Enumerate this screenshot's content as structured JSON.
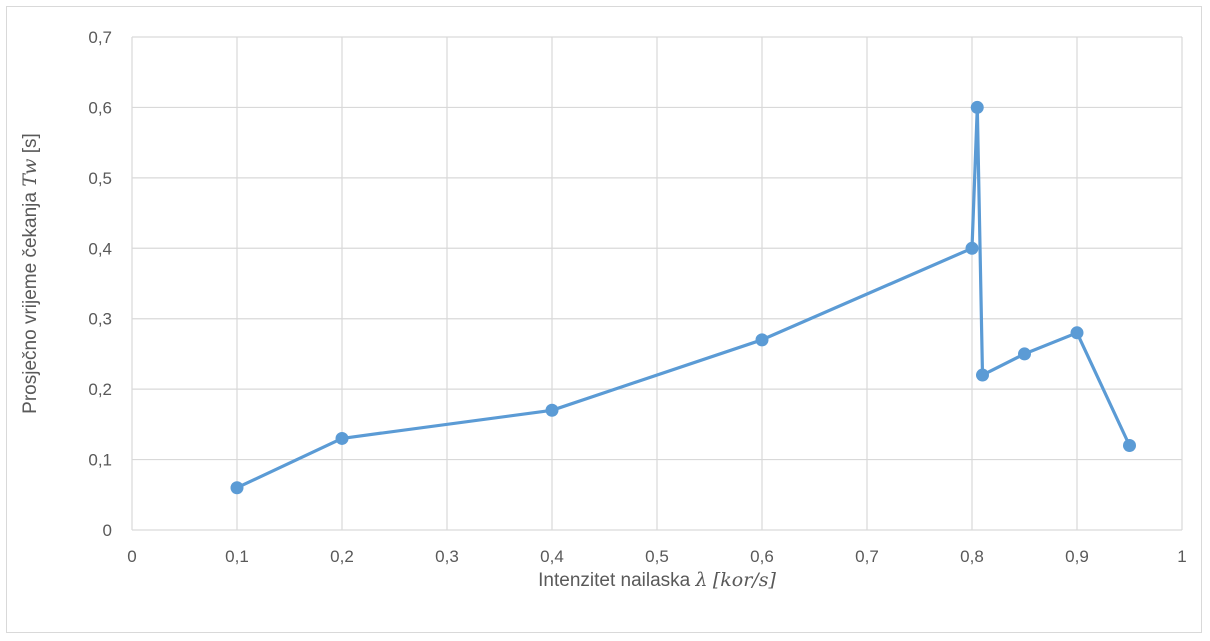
{
  "chart_data": {
    "type": "line",
    "title": "",
    "xlabel": {
      "prefix": "Intenzitet nailaska ",
      "symbol": "λ",
      "unit": "[kor/s]"
    },
    "ylabel": {
      "prefix": "Prosječno vrijeme čekanja ",
      "symbol": "Tw",
      "unit": "[s]"
    },
    "xlim": [
      0,
      1
    ],
    "ylim": [
      0,
      0.7
    ],
    "xticks": [
      0,
      0.1,
      0.2,
      0.3,
      0.4,
      0.5,
      0.6,
      0.7,
      0.8,
      0.9,
      1
    ],
    "yticks": [
      0,
      0.1,
      0.2,
      0.3,
      0.4,
      0.5,
      0.6,
      0.7
    ],
    "xtick_labels": [
      "0",
      "0,1",
      "0,2",
      "0,3",
      "0,4",
      "0,5",
      "0,6",
      "0,7",
      "0,8",
      "0,9",
      "1"
    ],
    "ytick_labels": [
      "0",
      "0,1",
      "0,2",
      "0,3",
      "0,4",
      "0,5",
      "0,6",
      "0,7"
    ],
    "grid": true,
    "legend": "none",
    "series": [
      {
        "color": "#5b9bd5",
        "x": [
          0.1,
          0.2,
          0.4,
          0.6,
          0.8,
          0.805,
          0.81,
          0.85,
          0.9,
          0.95
        ],
        "y": [
          0.06,
          0.13,
          0.17,
          0.27,
          0.4,
          0.6,
          0.22,
          0.25,
          0.28,
          0.12
        ]
      }
    ],
    "gridline_color": "#d9d9d9",
    "text_color": "#595959"
  }
}
